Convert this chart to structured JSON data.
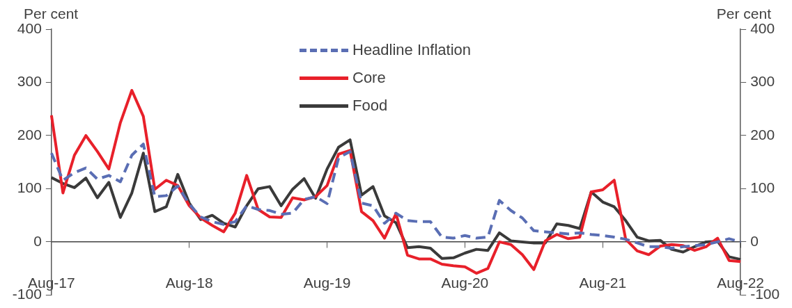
{
  "chart_data": {
    "type": "line",
    "ylabel": "Per cent",
    "y2label": "Per cent",
    "legend": "top",
    "marker": "none",
    "categories": [
      "Aug-17",
      null,
      null,
      null,
      null,
      null,
      null,
      null,
      null,
      null,
      null,
      null,
      "Aug-18",
      null,
      null,
      null,
      null,
      null,
      null,
      null,
      null,
      null,
      null,
      null,
      "Aug-19",
      null,
      null,
      null,
      null,
      null,
      null,
      null,
      null,
      null,
      null,
      null,
      "Aug-20",
      null,
      null,
      null,
      null,
      null,
      null,
      null,
      null,
      null,
      null,
      null,
      "Aug-21",
      null,
      null,
      null,
      null,
      null,
      null,
      null,
      null,
      null,
      null,
      null,
      "Aug-22"
    ],
    "ylim": [
      -100,
      400
    ],
    "yticks": [
      -100,
      0,
      100,
      200,
      300,
      400
    ],
    "y2lim": [
      -100,
      400
    ],
    "y2ticks": [
      -100,
      0,
      100,
      200,
      300,
      400
    ],
    "series": [
      {
        "name": "Headline Inflation",
        "color": "#5a6eb4",
        "line_style": "dashed",
        "values": [
          167,
          116,
          130,
          139,
          118,
          125,
          113,
          163,
          184,
          85,
          87,
          105,
          71,
          47,
          38,
          33,
          38,
          68,
          61,
          59,
          52,
          54,
          80,
          85,
          72,
          158,
          170,
          73,
          68,
          35,
          54,
          40,
          38,
          38,
          9,
          7,
          12,
          7,
          9,
          78,
          59,
          45,
          21,
          19,
          17,
          15,
          17,
          14,
          12,
          9,
          5,
          -2,
          -9,
          -9,
          -12,
          -9,
          -7,
          -5,
          0,
          6,
          0
        ]
      },
      {
        "name": "Core",
        "color": "#e8202a",
        "line_style": "solid",
        "values": [
          238,
          92,
          163,
          200,
          170,
          137,
          224,
          285,
          236,
          99,
          116,
          106,
          68,
          45,
          31,
          19,
          54,
          125,
          61,
          47,
          46,
          83,
          79,
          85,
          106,
          165,
          172,
          57,
          40,
          7,
          53,
          -25,
          -32,
          -32,
          -42,
          -45,
          -47,
          -59,
          -50,
          0,
          -5,
          -24,
          -52,
          2,
          14,
          6,
          9,
          94,
          98,
          116,
          5,
          -17,
          -24,
          -8,
          -5,
          -7,
          -16,
          -9,
          7,
          -35,
          -37
        ]
      },
      {
        "name": "Food",
        "color": "#3a3a3a",
        "line_style": "solid",
        "values": [
          121,
          110,
          102,
          120,
          83,
          112,
          46,
          92,
          167,
          57,
          66,
          127,
          73,
          42,
          50,
          35,
          28,
          68,
          100,
          104,
          68,
          99,
          119,
          82,
          137,
          178,
          192,
          88,
          104,
          49,
          36,
          -11,
          -9,
          -12,
          -31,
          -30,
          -21,
          -14,
          -16,
          17,
          2,
          0,
          -2,
          -2,
          34,
          31,
          25,
          94,
          75,
          66,
          40,
          9,
          2,
          3,
          -14,
          -19,
          -9,
          0,
          1,
          -28,
          -33
        ]
      }
    ]
  }
}
